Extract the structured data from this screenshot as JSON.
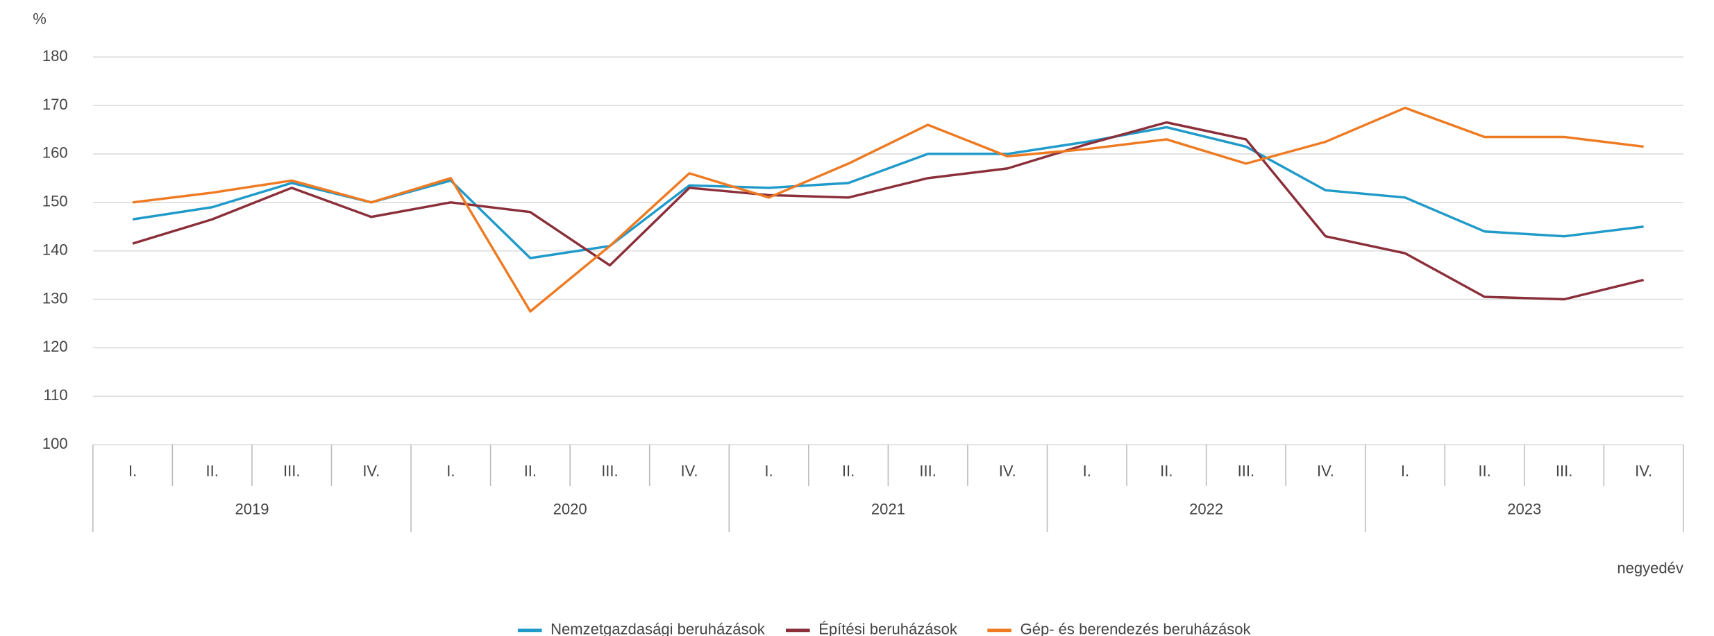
{
  "chart_data": {
    "type": "line",
    "y_label": "%",
    "x_label": "negyedév",
    "categories": [
      "I.",
      "II.",
      "III.",
      "IV.",
      "I.",
      "II.",
      "III.",
      "IV.",
      "I.",
      "II.",
      "III.",
      "IV.",
      "I.",
      "II.",
      "III.",
      "IV.",
      "I.",
      "II.",
      "III.",
      "IV."
    ],
    "years": [
      "2019",
      "2020",
      "2021",
      "2022",
      "2023"
    ],
    "ylim": [
      100,
      180
    ],
    "yticks": [
      100,
      110,
      120,
      130,
      140,
      150,
      160,
      170,
      180
    ],
    "grid": true,
    "legend": "bottom",
    "series": [
      {
        "name": "Nemzetgazdasági beruházások",
        "color": "#1f9ac9",
        "values": [
          146.5,
          149,
          154,
          150,
          154.5,
          138.5,
          141,
          153.5,
          153,
          154,
          160,
          160,
          162.5,
          165.5,
          161.5,
          152.5,
          151,
          144,
          143,
          145
        ]
      },
      {
        "name": "Építési beruházások",
        "color": "#8b2f3a",
        "values": [
          141.5,
          146.5,
          153,
          147,
          150,
          148,
          137,
          153,
          151.5,
          151,
          155,
          157,
          162,
          166.5,
          163,
          143,
          139.5,
          130.5,
          130,
          134
        ]
      },
      {
        "name": "Gép- és berendezés beruházások",
        "color": "#ee7a22",
        "values": [
          150,
          152,
          154.5,
          150,
          155,
          127.5,
          141,
          156,
          151,
          158,
          166,
          159.5,
          161,
          163,
          158,
          162.5,
          169.5,
          163.5,
          163.5,
          161.5
        ]
      }
    ]
  }
}
